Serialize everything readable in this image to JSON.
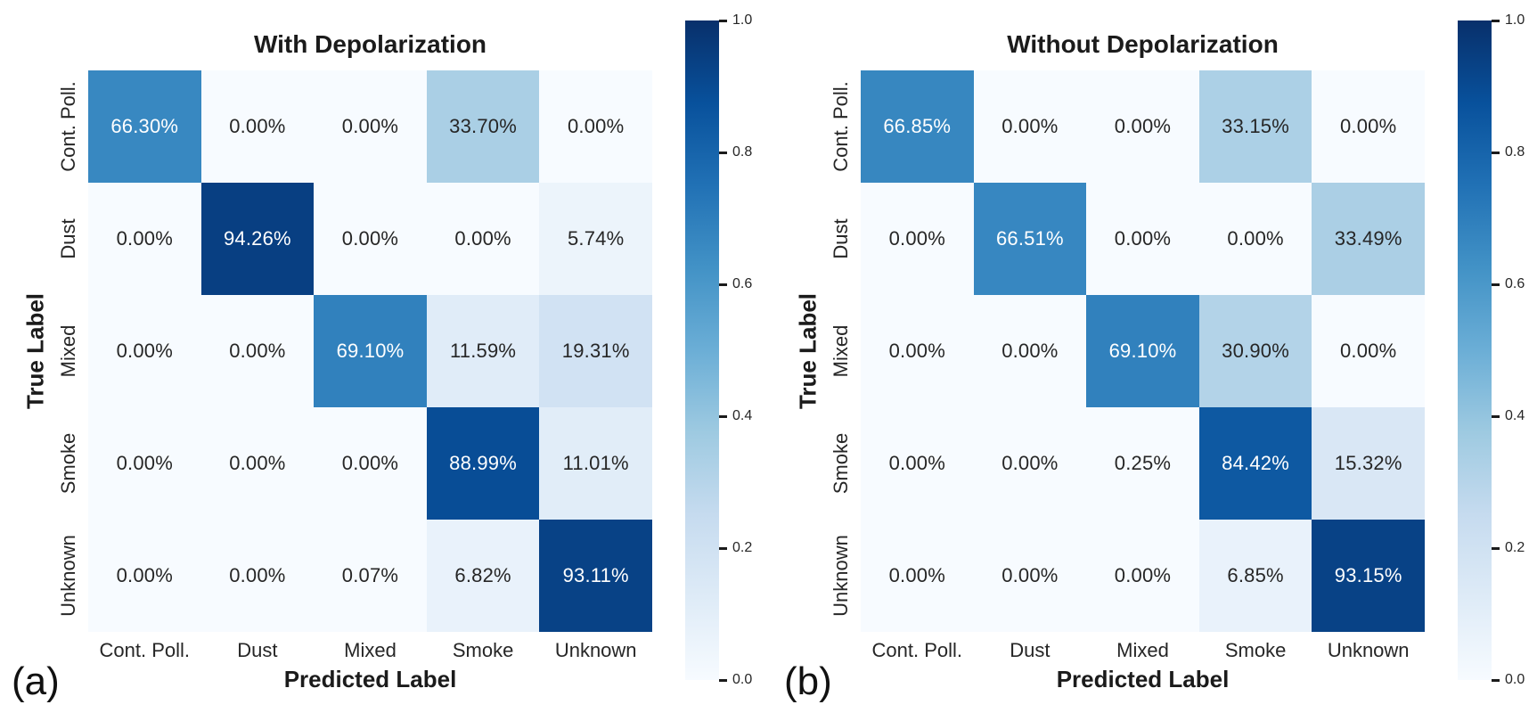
{
  "figure": {
    "background": "#ffffff",
    "text_color": "#262626",
    "title_color": "#1b1b1b",
    "cell_text_light": "#ffffff",
    "cell_text_dark": "#262626"
  },
  "colormap": {
    "name": "Blues",
    "anchors": [
      "#f7fbff",
      "#deebf7",
      "#c6dbef",
      "#9ecae1",
      "#6baed6",
      "#4292c6",
      "#2171b5",
      "#08519c",
      "#08306b"
    ]
  },
  "chart_data": [
    {
      "type": "heatmap",
      "panel_label": "(a)",
      "title": "With Depolarization",
      "xlabel": "Predicted Label",
      "ylabel": "True Label",
      "x_categories": [
        "Cont. Poll.",
        "Dust",
        "Mixed",
        "Smoke",
        "Unknown"
      ],
      "y_categories": [
        "Cont. Poll.",
        "Dust",
        "Mixed",
        "Smoke",
        "Unknown"
      ],
      "values_percent": [
        [
          66.3,
          0.0,
          0.0,
          33.7,
          0.0
        ],
        [
          0.0,
          94.26,
          0.0,
          0.0,
          5.74
        ],
        [
          0.0,
          0.0,
          69.1,
          11.59,
          19.31
        ],
        [
          0.0,
          0.0,
          0.0,
          88.99,
          11.01
        ],
        [
          0.0,
          0.0,
          0.07,
          6.82,
          93.11
        ]
      ],
      "cell_format": "percent",
      "vmin": 0.0,
      "vmax": 1.0,
      "colorbar_ticks": [
        "1.0",
        "0.8",
        "0.6",
        "0.4",
        "0.2",
        "0.0"
      ],
      "legend_position": "right-colorbar",
      "grid": false
    },
    {
      "type": "heatmap",
      "panel_label": "(b)",
      "title": "Without Depolarization",
      "xlabel": "Predicted Label",
      "ylabel": "True Label",
      "x_categories": [
        "Cont. Poll.",
        "Dust",
        "Mixed",
        "Smoke",
        "Unknown"
      ],
      "y_categories": [
        "Cont. Poll.",
        "Dust",
        "Mixed",
        "Smoke",
        "Unknown"
      ],
      "values_percent": [
        [
          66.85,
          0.0,
          0.0,
          33.15,
          0.0
        ],
        [
          0.0,
          66.51,
          0.0,
          0.0,
          33.49
        ],
        [
          0.0,
          0.0,
          69.1,
          30.9,
          0.0
        ],
        [
          0.0,
          0.0,
          0.25,
          84.42,
          15.32
        ],
        [
          0.0,
          0.0,
          0.0,
          6.85,
          93.15
        ]
      ],
      "cell_format": "percent",
      "vmin": 0.0,
      "vmax": 1.0,
      "colorbar_ticks": [
        "1.0",
        "0.8",
        "0.6",
        "0.4",
        "0.2",
        "0.0"
      ],
      "legend_position": "right-colorbar",
      "grid": false
    }
  ]
}
